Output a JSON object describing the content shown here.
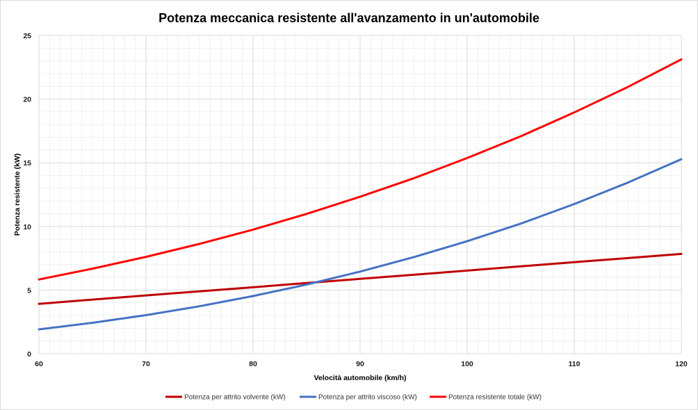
{
  "chart_data": {
    "type": "line",
    "title": "Potenza meccanica resistente all'avanzamento in un'automobile",
    "xlabel": "Velocità automobile (km/h)",
    "ylabel": "Potenza resistente (kW)",
    "xlim": [
      60,
      120
    ],
    "ylim": [
      0,
      25
    ],
    "x_ticks": [
      60,
      70,
      80,
      90,
      100,
      110,
      120
    ],
    "y_ticks": [
      0,
      5,
      10,
      15,
      20,
      25
    ],
    "grid": true,
    "legend_position": "bottom",
    "x": [
      60,
      65,
      70,
      75,
      80,
      85,
      90,
      95,
      100,
      105,
      110,
      115,
      120
    ],
    "series": [
      {
        "name": "Potenza per attrito volvente (kW)",
        "color": "#c00000",
        "values": [
          3.92,
          4.25,
          4.58,
          4.9,
          5.22,
          5.55,
          5.88,
          6.2,
          6.53,
          6.86,
          7.19,
          7.51,
          7.84
        ]
      },
      {
        "name": "Potenza per attrito viscoso (kW)",
        "color": "#4472c4",
        "values": [
          1.91,
          2.43,
          3.03,
          3.73,
          4.53,
          5.43,
          6.45,
          7.58,
          8.84,
          10.22,
          11.76,
          13.44,
          15.28
        ]
      },
      {
        "name": "Potenza resistente totale (kW)",
        "color": "#ff0000",
        "values": [
          5.83,
          6.68,
          7.61,
          8.63,
          9.75,
          10.98,
          12.33,
          13.78,
          15.37,
          17.08,
          18.95,
          20.95,
          23.12
        ]
      }
    ]
  }
}
